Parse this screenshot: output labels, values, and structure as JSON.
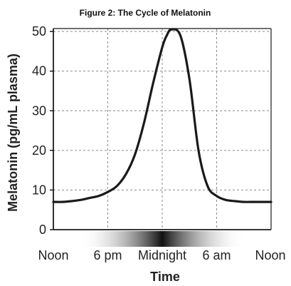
{
  "chart_data": {
    "type": "line",
    "title": "Figure 2: The Cycle of Melatonin",
    "xlabel": "Time",
    "ylabel": "Melatonin (pg/mL plasma)",
    "x_tick_labels": [
      "Noon",
      "6 pm",
      "Midnight",
      "6 am",
      "Noon"
    ],
    "x_hours": [
      0,
      6,
      12,
      18,
      24
    ],
    "y_ticks": [
      0,
      10,
      20,
      30,
      40,
      50
    ],
    "ylim": [
      0,
      50
    ],
    "xlim": [
      0,
      24
    ],
    "grid": true,
    "series": [
      {
        "x": [
          0,
          1,
          2,
          3,
          4,
          5,
          6,
          7,
          8,
          9,
          10,
          11,
          12,
          12.5,
          13,
          14,
          15,
          16,
          17,
          18,
          19,
          20,
          21,
          22,
          23,
          24
        ],
        "values": [
          7,
          7,
          7.2,
          7.5,
          8,
          8.5,
          9.5,
          11,
          14,
          19,
          27,
          37,
          46,
          49,
          50.5,
          49,
          38,
          20,
          11,
          8.5,
          7.5,
          7.2,
          7,
          7,
          7,
          7
        ]
      }
    ],
    "colors": {
      "line": "#1a1a1a",
      "grid": "#8a8a8a",
      "axis": "#1a1a1a",
      "night_band": "#111111",
      "day_band": "#ffffff"
    }
  }
}
